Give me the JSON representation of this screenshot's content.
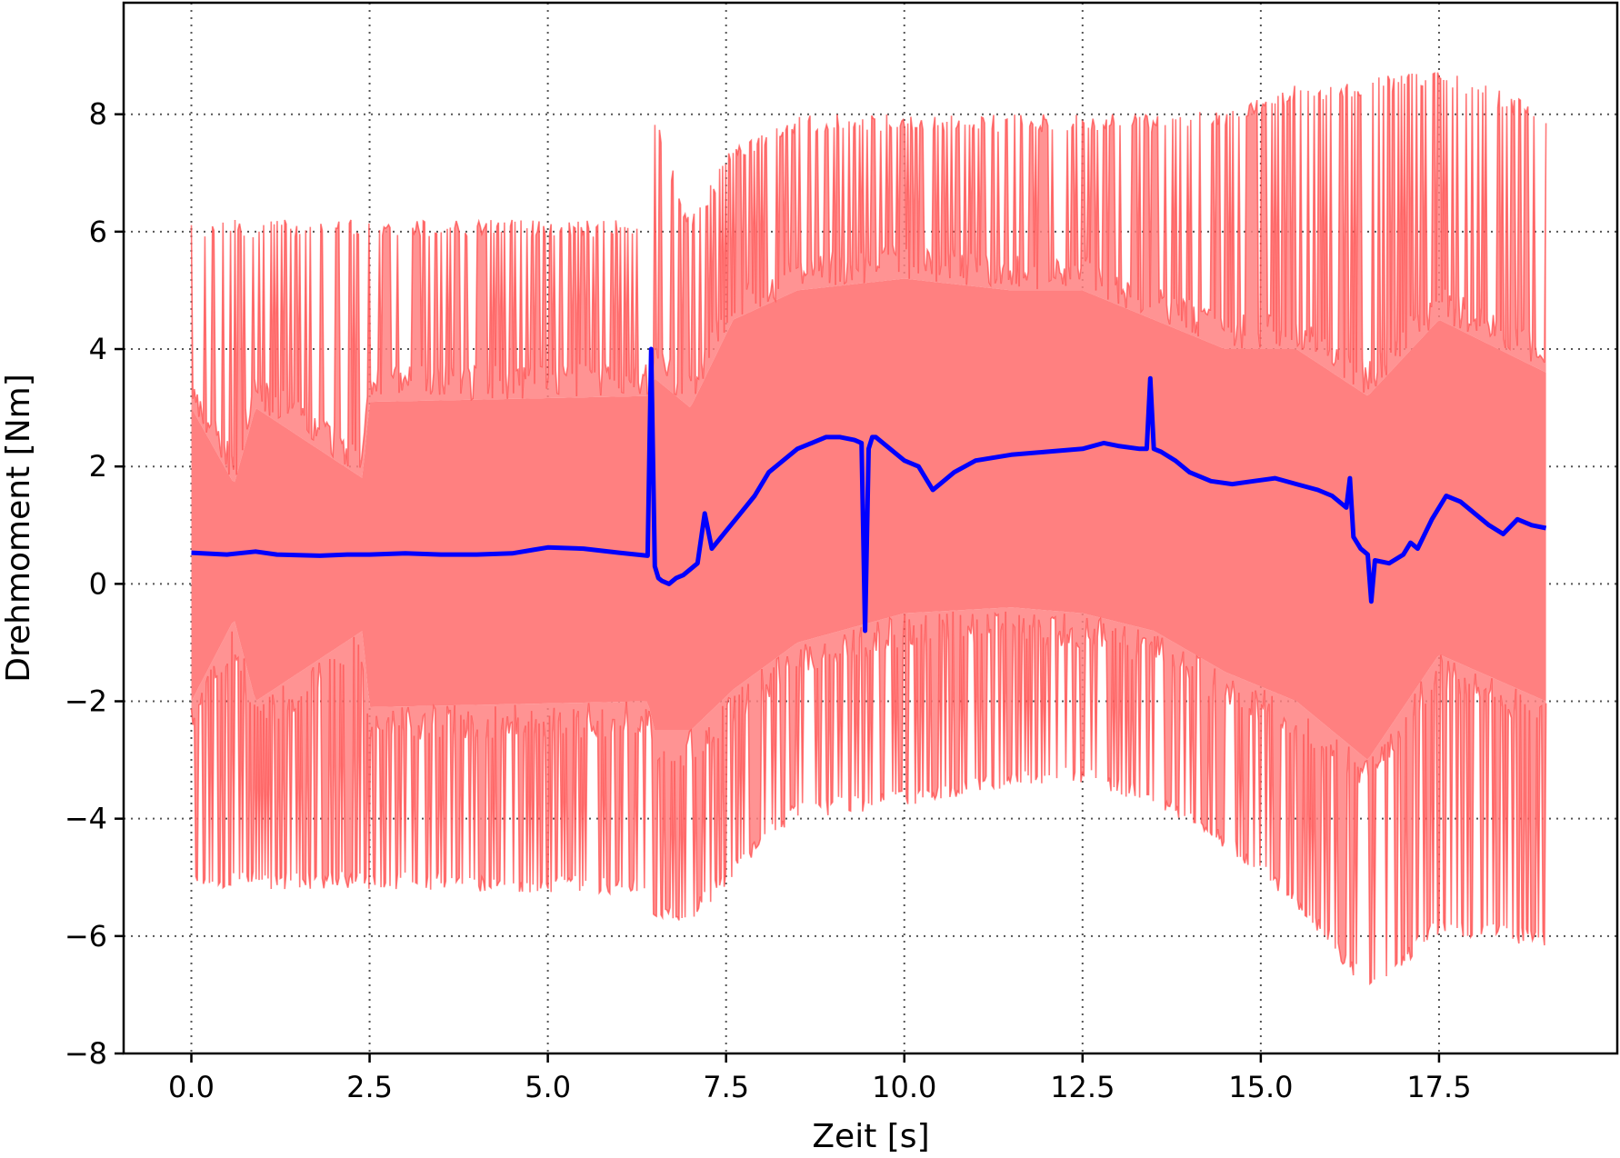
{
  "chart_data": {
    "type": "line",
    "title": "",
    "xlabel": "Zeit [s]",
    "ylabel": "Drehmoment [Nm]",
    "xlim": [
      -0.95,
      20.0
    ],
    "ylim": [
      -8,
      9.9
    ],
    "xticks": [
      0.0,
      2.5,
      5.0,
      7.5,
      10.0,
      12.5,
      15.0,
      17.5
    ],
    "xtick_labels": [
      "0.0",
      "2.5",
      "5.0",
      "7.5",
      "10.0",
      "12.5",
      "15.0",
      "17.5"
    ],
    "yticks": [
      -8,
      -6,
      -4,
      -2,
      0,
      2,
      4,
      6,
      8
    ],
    "ytick_labels": [
      "−8",
      "−6",
      "−4",
      "−2",
      "0",
      "2",
      "4",
      "6",
      "8"
    ],
    "grid": true,
    "colors": {
      "mean": "#0000ff",
      "band_fill": "#ff8080",
      "band_line": "#ff4d4d"
    },
    "series": [
      {
        "role": "mean",
        "x": [
          0.0,
          0.5,
          0.9,
          1.2,
          1.8,
          2.2,
          2.5,
          3.0,
          3.5,
          4.0,
          4.5,
          4.8,
          5.0,
          5.5,
          6.0,
          6.4,
          6.45,
          6.5,
          6.55,
          6.6,
          6.7,
          6.8,
          6.9,
          7.0,
          7.1,
          7.2,
          7.3,
          7.5,
          7.7,
          7.9,
          8.1,
          8.3,
          8.5,
          8.7,
          8.9,
          9.1,
          9.3,
          9.4,
          9.45,
          9.5,
          9.55,
          9.6,
          9.8,
          10.0,
          10.2,
          10.4,
          10.5,
          10.7,
          11.0,
          11.5,
          12.0,
          12.5,
          12.8,
          13.0,
          13.3,
          13.4,
          13.45,
          13.5,
          13.6,
          13.8,
          14.0,
          14.3,
          14.6,
          14.9,
          15.2,
          15.5,
          15.8,
          16.0,
          16.2,
          16.25,
          16.3,
          16.4,
          16.5,
          16.55,
          16.6,
          16.8,
          17.0,
          17.1,
          17.2,
          17.4,
          17.6,
          17.8,
          18.0,
          18.2,
          18.4,
          18.6,
          18.8,
          19.0
        ],
        "y": [
          0.53,
          0.5,
          0.55,
          0.5,
          0.48,
          0.5,
          0.5,
          0.52,
          0.5,
          0.5,
          0.52,
          0.58,
          0.62,
          0.6,
          0.53,
          0.48,
          4.0,
          0.3,
          0.1,
          0.05,
          0.0,
          0.1,
          0.15,
          0.25,
          0.35,
          1.2,
          0.6,
          0.9,
          1.2,
          1.5,
          1.9,
          2.1,
          2.3,
          2.4,
          2.5,
          2.5,
          2.45,
          2.4,
          -0.8,
          2.3,
          2.5,
          2.5,
          2.3,
          2.1,
          2.0,
          1.6,
          1.7,
          1.9,
          2.1,
          2.2,
          2.25,
          2.3,
          2.4,
          2.35,
          2.3,
          2.3,
          3.5,
          2.3,
          2.25,
          2.1,
          1.9,
          1.75,
          1.7,
          1.75,
          1.8,
          1.7,
          1.6,
          1.5,
          1.3,
          1.8,
          0.8,
          0.6,
          0.5,
          -0.3,
          0.4,
          0.35,
          0.5,
          0.7,
          0.6,
          1.1,
          1.5,
          1.4,
          1.2,
          1.0,
          0.85,
          1.1,
          1.0,
          0.95
        ]
      },
      {
        "role": "band",
        "x": [
          0.0,
          0.6,
          0.9,
          2.4,
          2.5,
          6.4,
          6.5,
          7.0,
          7.6,
          8.5,
          10.0,
          11.5,
          12.5,
          13.5,
          14.5,
          15.5,
          16.5,
          17.5,
          19.0
        ],
        "upper_envelope": [
          6.2,
          6.2,
          6.2,
          6.2,
          6.2,
          6.2,
          8.0,
          6.2,
          7.5,
          8.0,
          8.0,
          8.0,
          8.0,
          8.0,
          8.1,
          8.5,
          8.6,
          8.8,
          8.1
        ],
        "upper_typical": [
          3.0,
          1.7,
          3.0,
          1.8,
          3.1,
          3.2,
          3.5,
          3.0,
          4.5,
          5.0,
          5.2,
          5.0,
          5.0,
          4.5,
          4.0,
          4.0,
          3.2,
          4.5,
          3.6
        ],
        "lower_typical": [
          -2.0,
          -0.6,
          -2.0,
          -0.8,
          -2.1,
          -2.0,
          -2.5,
          -2.5,
          -1.8,
          -1.0,
          -0.5,
          -0.4,
          -0.5,
          -0.8,
          -1.5,
          -2.0,
          -3.0,
          -1.2,
          -2.0
        ],
        "lower_envelope": [
          -5.2,
          -5.2,
          -5.2,
          -5.2,
          -5.2,
          -5.3,
          -5.8,
          -5.8,
          -5.0,
          -4.0,
          -3.8,
          -3.5,
          -3.4,
          -3.8,
          -4.5,
          -5.5,
          -7.0,
          -6.0,
          -6.2
        ]
      }
    ]
  }
}
